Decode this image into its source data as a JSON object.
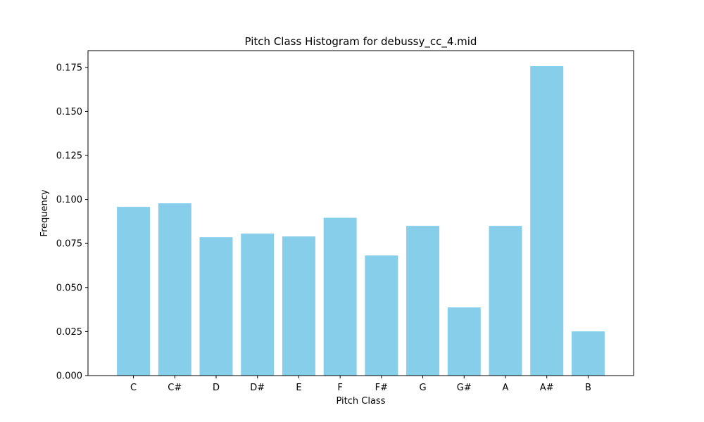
{
  "chart_data": {
    "type": "bar",
    "title": "Pitch Class Histogram for debussy_cc_4.mid",
    "xlabel": "Pitch Class",
    "ylabel": "Frequency",
    "categories": [
      "C",
      "C#",
      "D",
      "D#",
      "E",
      "F",
      "F#",
      "G",
      "G#",
      "A",
      "A#",
      "B"
    ],
    "values": [
      0.0958,
      0.0978,
      0.0786,
      0.0806,
      0.079,
      0.0896,
      0.0682,
      0.085,
      0.0387,
      0.085,
      0.1757,
      0.0251
    ],
    "ylim": [
      0,
      0.1845
    ],
    "yticks": [
      "0.000",
      "0.025",
      "0.050",
      "0.075",
      "0.100",
      "0.125",
      "0.150",
      "0.175"
    ],
    "ytick_values": [
      0,
      0.025,
      0.05,
      0.075,
      0.1,
      0.125,
      0.15,
      0.175
    ],
    "bar_color": "#87CEEB",
    "grid": false,
    "legend": false
  }
}
